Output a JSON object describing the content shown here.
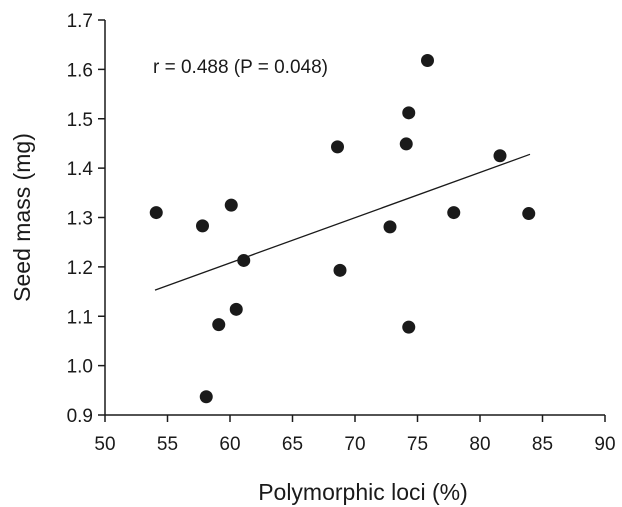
{
  "chart_data": {
    "type": "scatter",
    "xlabel": "Polymorphic loci (%)",
    "ylabel": "Seed mass (mg)",
    "xlim": [
      50,
      90
    ],
    "ylim": [
      0.9,
      1.7
    ],
    "x_ticks": [
      "50",
      "55",
      "60",
      "65",
      "70",
      "75",
      "80",
      "85",
      "90"
    ],
    "y_ticks": [
      "0.9",
      "1.0",
      "1.1",
      "1.2",
      "1.3",
      "1.4",
      "1.5",
      "1.6",
      "1.7"
    ],
    "annotation": "r = 0.488 (P  = 0.048)",
    "grid": false,
    "points": [
      {
        "x": 54.1,
        "y": 1.31
      },
      {
        "x": 57.8,
        "y": 1.283
      },
      {
        "x": 58.1,
        "y": 0.937
      },
      {
        "x": 59.1,
        "y": 1.083
      },
      {
        "x": 60.1,
        "y": 1.325
      },
      {
        "x": 60.5,
        "y": 1.114
      },
      {
        "x": 61.1,
        "y": 1.213
      },
      {
        "x": 68.6,
        "y": 1.443
      },
      {
        "x": 68.8,
        "y": 1.193
      },
      {
        "x": 72.8,
        "y": 1.281
      },
      {
        "x": 74.1,
        "y": 1.449
      },
      {
        "x": 74.3,
        "y": 1.512
      },
      {
        "x": 74.3,
        "y": 1.078
      },
      {
        "x": 75.8,
        "y": 1.618
      },
      {
        "x": 77.9,
        "y": 1.31
      },
      {
        "x": 81.6,
        "y": 1.425
      },
      {
        "x": 83.9,
        "y": 1.308
      }
    ],
    "trendline": {
      "x": [
        54.0,
        84.0
      ],
      "y": [
        1.153,
        1.428
      ]
    },
    "colors": {
      "points": "#1a1a1a",
      "axes": "#1a1a1a",
      "trendline": "#1a1a1a"
    }
  }
}
